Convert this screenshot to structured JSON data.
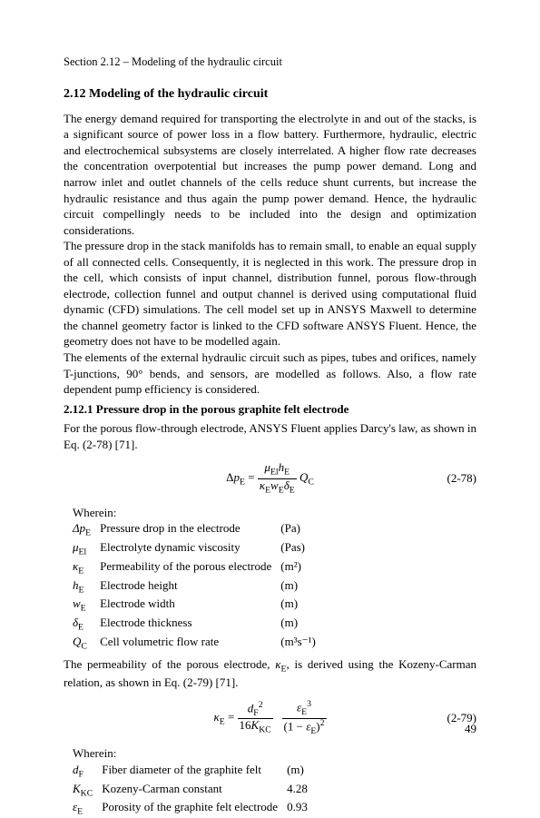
{
  "section_header": "Section 2.12 – Modeling of the hydraulic circuit",
  "h2": "2.12 Modeling of the hydraulic circuit",
  "para1": "The energy demand required for transporting the electrolyte in and out of the stacks, is a significant source of power loss in a flow battery. Furthermore, hydraulic, electric and electrochemical subsystems are closely interrelated. A higher flow rate decreases the concentration overpotential but increases the pump power demand. Long and narrow inlet and outlet channels of the cells reduce shunt currents, but increase the hydraulic resistance and thus again the pump power demand. Hence, the hydraulic circuit compellingly needs to be included into the design and optimization considerations.",
  "para2": "The pressure drop in the stack manifolds has to remain small, to enable an equal supply of all connected cells. Consequently, it is neglected in this work. The pressure drop in the cell, which consists of input channel, distribution funnel, porous flow-through electrode, collection funnel and output channel is derived using computational fluid dynamic (CFD) simulations. The cell model set up in ANSYS Maxwell to determine the channel geometry factor is linked to the CFD software ANSYS Fluent. Hence, the geometry does not have to be modelled again.",
  "para3": "The elements of the external hydraulic circuit such as pipes, tubes and orifices, namely T-junctions, 90° bends, and sensors, are modelled as follows. Also, a flow rate dependent pump efficiency is considered.",
  "h3": "2.12.1   Pressure drop in the porous graphite felt electrode",
  "para4": "For the porous flow-through electrode, ANSYS Fluent applies Darcy's law, as shown in Eq. (2-78) [71].",
  "eq1_num": "(2-78)",
  "wherein": "Wherein:",
  "symbols1": [
    {
      "sym": "Δp",
      "sub": "E",
      "desc": "Pressure drop in the electrode",
      "unit": "(Pa)"
    },
    {
      "sym": "μ",
      "sub": "El",
      "desc": "Electrolyte dynamic viscosity",
      "unit": "(Pas)"
    },
    {
      "sym": "κ",
      "sub": "E",
      "desc": "Permeability of the porous electrode",
      "unit": "(m²)"
    },
    {
      "sym": "h",
      "sub": "E",
      "desc": "Electrode height",
      "unit": "(m)"
    },
    {
      "sym": "w",
      "sub": "E",
      "desc": "Electrode width",
      "unit": "(m)"
    },
    {
      "sym": "δ",
      "sub": "E",
      "desc": "Electrode thickness",
      "unit": "(m)"
    },
    {
      "sym": "Q",
      "sub": "C",
      "desc": "Cell volumetric flow rate",
      "unit": "(m³s⁻¹)"
    }
  ],
  "para5_pre": "The permeability of the porous electrode, ",
  "para5_sym": "κ",
  "para5_sub": "E",
  "para5_post": ", is derived using the Kozeny-Carman relation, as shown in Eq. (2-79) [71].",
  "eq2_num": "(2-79)",
  "symbols2": [
    {
      "sym": "d",
      "sub": "F",
      "desc": "Fiber diameter of the graphite felt",
      "unit": "(m)"
    },
    {
      "sym": "K",
      "sub": "KC",
      "desc": "Kozeny-Carman constant",
      "unit": "4.28"
    },
    {
      "sym": "ε",
      "sub": "E",
      "desc": "Porosity of the graphite felt electrode",
      "unit": "0.93"
    }
  ],
  "page_number": "49"
}
